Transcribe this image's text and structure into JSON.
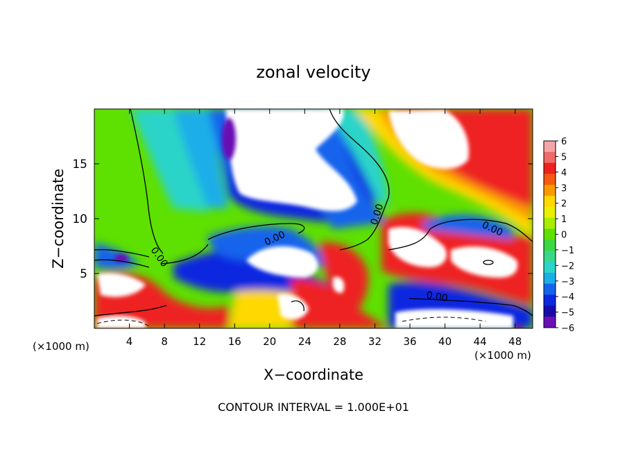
{
  "chart_data": {
    "type": "heatmap",
    "title": "zonal velocity",
    "xlabel": "X−coordinate",
    "ylabel": "Z−coordinate",
    "x_unit_left": "(×1000 m)",
    "x_unit_right": "(×1000 m)",
    "footer": "CONTOUR INTERVAL = 1.000E+01",
    "xlim": [
      0,
      50
    ],
    "ylim": [
      0,
      20
    ],
    "x_ticks": [
      4,
      8,
      12,
      16,
      20,
      24,
      28,
      32,
      36,
      40,
      44,
      48
    ],
    "x_tick_labels": [
      "4",
      "8",
      "12",
      "16",
      "20",
      "24",
      "28",
      "32",
      "36",
      "40",
      "44",
      "48"
    ],
    "y_ticks": [
      5,
      10,
      15
    ],
    "y_tick_labels": [
      "5",
      "10",
      "15"
    ],
    "colorbar": {
      "range": [
        -6,
        6
      ],
      "tick_labels": [
        "6",
        "5",
        "4",
        "3",
        "2",
        "1",
        "0",
        "−1",
        "−2",
        "−3",
        "−4",
        "−5",
        "−6"
      ],
      "colors": [
        "#f4a6a6",
        "#f06a6a",
        "#ee2020",
        "#f45a12",
        "#fb9a00",
        "#fed800",
        "#e8f000",
        "#a8ec00",
        "#5ee000",
        "#3cd844",
        "#38d888",
        "#2ad4c8",
        "#1aaee8",
        "#1264ec",
        "#0a28e0",
        "#1a0aa8",
        "#6a10b4"
      ]
    },
    "contour_labels": [
      "0.00",
      "0.00",
      "0.00",
      "0.00",
      "0.00"
    ],
    "grid": false
  }
}
